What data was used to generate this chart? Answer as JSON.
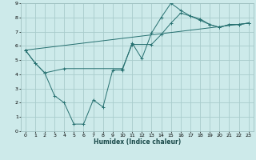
{
  "xlabel": "Humidex (Indice chaleur)",
  "ylabel": "",
  "bg_color": "#cdeaea",
  "grid_color": "#a8cccc",
  "line_color": "#267070",
  "xlim": [
    -0.5,
    23.5
  ],
  "ylim": [
    0,
    9
  ],
  "xticks": [
    0,
    1,
    2,
    3,
    4,
    5,
    6,
    7,
    8,
    9,
    10,
    11,
    12,
    13,
    14,
    15,
    16,
    17,
    18,
    19,
    20,
    21,
    22,
    23
  ],
  "yticks": [
    0,
    1,
    2,
    3,
    4,
    5,
    6,
    7,
    8,
    9
  ],
  "series": [
    {
      "x": [
        0,
        1,
        2,
        3,
        4,
        5,
        6,
        7,
        8,
        9,
        10,
        11,
        12,
        13,
        14,
        15,
        16,
        17,
        18,
        19,
        20,
        21,
        22,
        23
      ],
      "y": [
        5.7,
        4.8,
        4.1,
        2.5,
        2.0,
        0.5,
        0.5,
        2.2,
        1.7,
        4.3,
        4.3,
        6.2,
        5.1,
        6.9,
        8.0,
        9.0,
        8.5,
        8.1,
        7.9,
        7.5,
        7.3,
        7.5,
        7.5,
        7.6
      ]
    },
    {
      "x": [
        0,
        1,
        2,
        4,
        10,
        11,
        13,
        14,
        15,
        16,
        17,
        18,
        19,
        20,
        21,
        22,
        23
      ],
      "y": [
        5.7,
        4.8,
        4.1,
        4.4,
        4.4,
        6.1,
        6.1,
        6.8,
        7.6,
        8.3,
        8.1,
        7.8,
        7.5,
        7.3,
        7.5,
        7.5,
        7.6
      ]
    },
    {
      "x": [
        0,
        23
      ],
      "y": [
        5.7,
        7.6
      ]
    }
  ]
}
